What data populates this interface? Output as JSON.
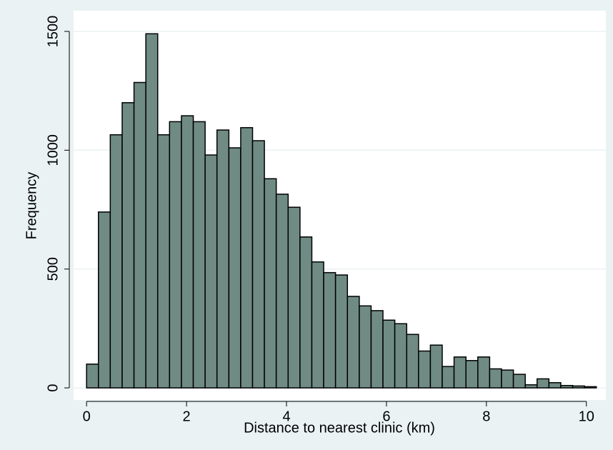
{
  "chart_data": {
    "type": "histogram",
    "xlabel": "Distance to nearest clinic (km)",
    "ylabel": "Frequency",
    "bins": [
      0,
      0.237,
      0.474,
      0.712,
      0.949,
      1.186,
      1.423,
      1.66,
      1.898,
      2.135,
      2.372,
      2.609,
      2.847,
      3.084,
      3.321,
      3.558,
      3.795,
      4.033,
      4.27,
      4.507,
      4.744,
      4.981,
      5.219,
      5.456,
      5.693,
      5.93,
      6.167,
      6.405,
      6.642,
      6.879,
      7.116,
      7.353,
      7.591,
      7.828,
      8.065,
      8.302,
      8.54,
      8.777,
      9.014,
      9.251,
      9.488,
      9.726,
      9.963,
      10.2
    ],
    "values": [
      100,
      740,
      1065,
      1200,
      1285,
      1490,
      1065,
      1120,
      1145,
      1120,
      980,
      1085,
      1010,
      1095,
      1040,
      880,
      815,
      760,
      635,
      530,
      485,
      475,
      385,
      345,
      325,
      285,
      270,
      225,
      155,
      180,
      90,
      130,
      115,
      130,
      80,
      75,
      57,
      13,
      38,
      22,
      10,
      8,
      5
    ],
    "color": "#6f8b84",
    "xlim": [
      -0.26,
      10.39
    ],
    "ylim": [
      -51,
      1587
    ],
    "xticks": [
      0,
      2,
      4,
      6,
      8,
      10
    ],
    "yticks": [
      0,
      500,
      1000,
      1500
    ],
    "grid": true
  }
}
